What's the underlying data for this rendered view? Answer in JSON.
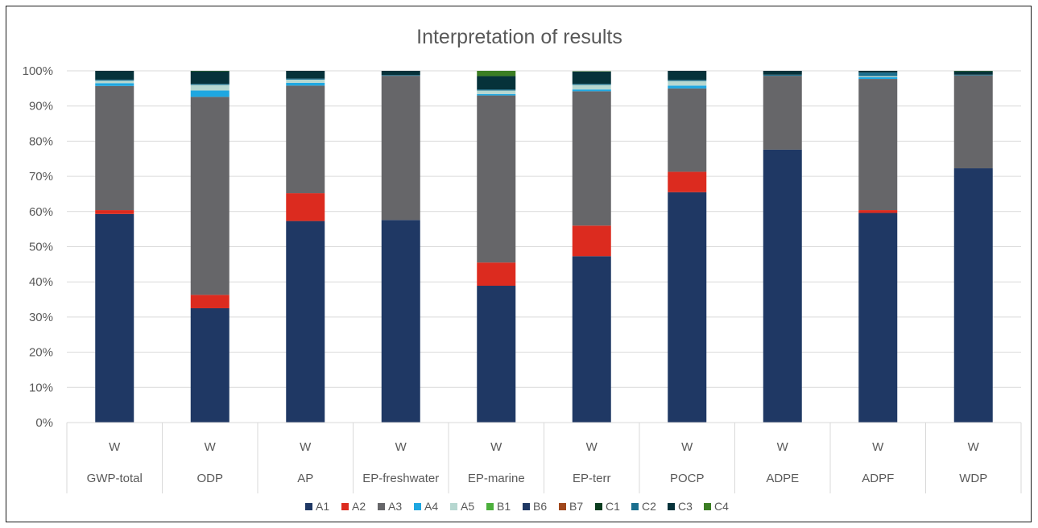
{
  "chart_data": {
    "type": "bar",
    "stacked": true,
    "percent": true,
    "title": "Interpretation of results",
    "xlabel": "",
    "ylabel": "",
    "ylim": [
      0,
      100
    ],
    "y_ticks": [
      "0%",
      "10%",
      "20%",
      "30%",
      "40%",
      "50%",
      "60%",
      "70%",
      "80%",
      "90%",
      "100%"
    ],
    "grid": true,
    "legend_position": "bottom",
    "categories": [
      {
        "group": "W",
        "label": "GWP-total"
      },
      {
        "group": "W",
        "label": "ODP"
      },
      {
        "group": "W",
        "label": "AP"
      },
      {
        "group": "W",
        "label": "EP-freshwater"
      },
      {
        "group": "W",
        "label": "EP-marine"
      },
      {
        "group": "W",
        "label": "EP-terr"
      },
      {
        "group": "W",
        "label": "POCP"
      },
      {
        "group": "W",
        "label": "ADPE"
      },
      {
        "group": "W",
        "label": "ADPF"
      },
      {
        "group": "W",
        "label": "WDP"
      }
    ],
    "series": [
      {
        "name": "A1",
        "color": "#1f3864",
        "values": [
          59.3,
          32.5,
          57.3,
          57.6,
          38.9,
          47.3,
          65.5,
          77.6,
          59.6,
          72.3
        ]
      },
      {
        "name": "A2",
        "color": "#dc2b1f",
        "values": [
          1.1,
          3.8,
          7.9,
          0.0,
          6.6,
          8.7,
          5.8,
          0.0,
          0.8,
          0.0
        ]
      },
      {
        "name": "A3",
        "color": "#666669",
        "values": [
          35.3,
          56.3,
          30.6,
          41.0,
          47.5,
          38.2,
          23.7,
          21.0,
          37.3,
          26.4
        ]
      },
      {
        "name": "A4",
        "color": "#1ea7e1",
        "values": [
          0.8,
          1.8,
          0.8,
          0.0,
          0.4,
          0.5,
          0.8,
          0.0,
          0.5,
          0.0
        ]
      },
      {
        "name": "A5",
        "color": "#b6d7d0",
        "values": [
          0.7,
          1.6,
          0.9,
          0.0,
          1.0,
          1.3,
          1.3,
          0.0,
          0.3,
          0.0
        ]
      },
      {
        "name": "B1",
        "color": "#4caf3c",
        "values": [
          0,
          0,
          0,
          0,
          0,
          0,
          0,
          0,
          0,
          0
        ]
      },
      {
        "name": "B6",
        "color": "#1f3864",
        "values": [
          0,
          0,
          0,
          0,
          0,
          0,
          0,
          0,
          0,
          0
        ]
      },
      {
        "name": "B7",
        "color": "#a0471c",
        "values": [
          0,
          0,
          0,
          0,
          0,
          0,
          0,
          0,
          0,
          0
        ]
      },
      {
        "name": "C1",
        "color": "#0b3d1f",
        "values": [
          0,
          0,
          0,
          0,
          0,
          0,
          0,
          0,
          0,
          0
        ]
      },
      {
        "name": "C2",
        "color": "#1a6e8e",
        "values": [
          0.3,
          0.3,
          0.3,
          0.2,
          0.3,
          0.3,
          0.3,
          0.3,
          1.0,
          0.2
        ]
      },
      {
        "name": "C3",
        "color": "#06323a",
        "values": [
          2.5,
          3.6,
          2.2,
          1.2,
          3.8,
          3.5,
          2.6,
          1.1,
          0.5,
          1.0
        ]
      },
      {
        "name": "C4",
        "color": "#3b7d23",
        "values": [
          0.0,
          0.1,
          0.0,
          0.0,
          1.5,
          0.1,
          0.0,
          0.0,
          0.0,
          0.1
        ]
      }
    ]
  }
}
